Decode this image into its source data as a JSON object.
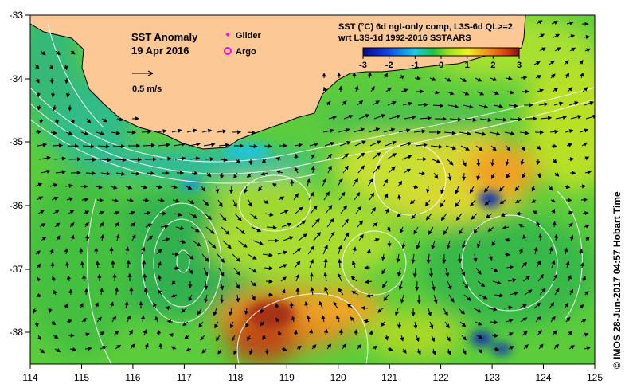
{
  "map": {
    "title": "SST Anomaly",
    "date": "19 Apr 2016",
    "scale_label": "0.5 m/s",
    "legend_glider": "Glider",
    "legend_argo": "Argo",
    "product_line1": "SST (°C) 6d ngt-only comp, L3S-6d QL>=2",
    "product_line2": "wrt L3S-1d 1992-2016 SSTAARS",
    "credit": "© IMOS 28-Jun-2017 04:57 Hobart Time",
    "colorbar_ticks": [
      "-3",
      "-2",
      "-1",
      "0",
      "1",
      "2",
      "3"
    ],
    "lon_ticks": [
      "114",
      "115",
      "116",
      "117",
      "118",
      "119",
      "120",
      "121",
      "122",
      "123",
      "124",
      "125"
    ],
    "lat_ticks": [
      "-33",
      "-34",
      "-35",
      "-36",
      "-37",
      "-38"
    ],
    "colors": {
      "land": "#fbc896",
      "glider": "#ff00ff",
      "argo": "#ff00ff",
      "contour": "#ffffff",
      "vector": "#000000"
    }
  }
}
